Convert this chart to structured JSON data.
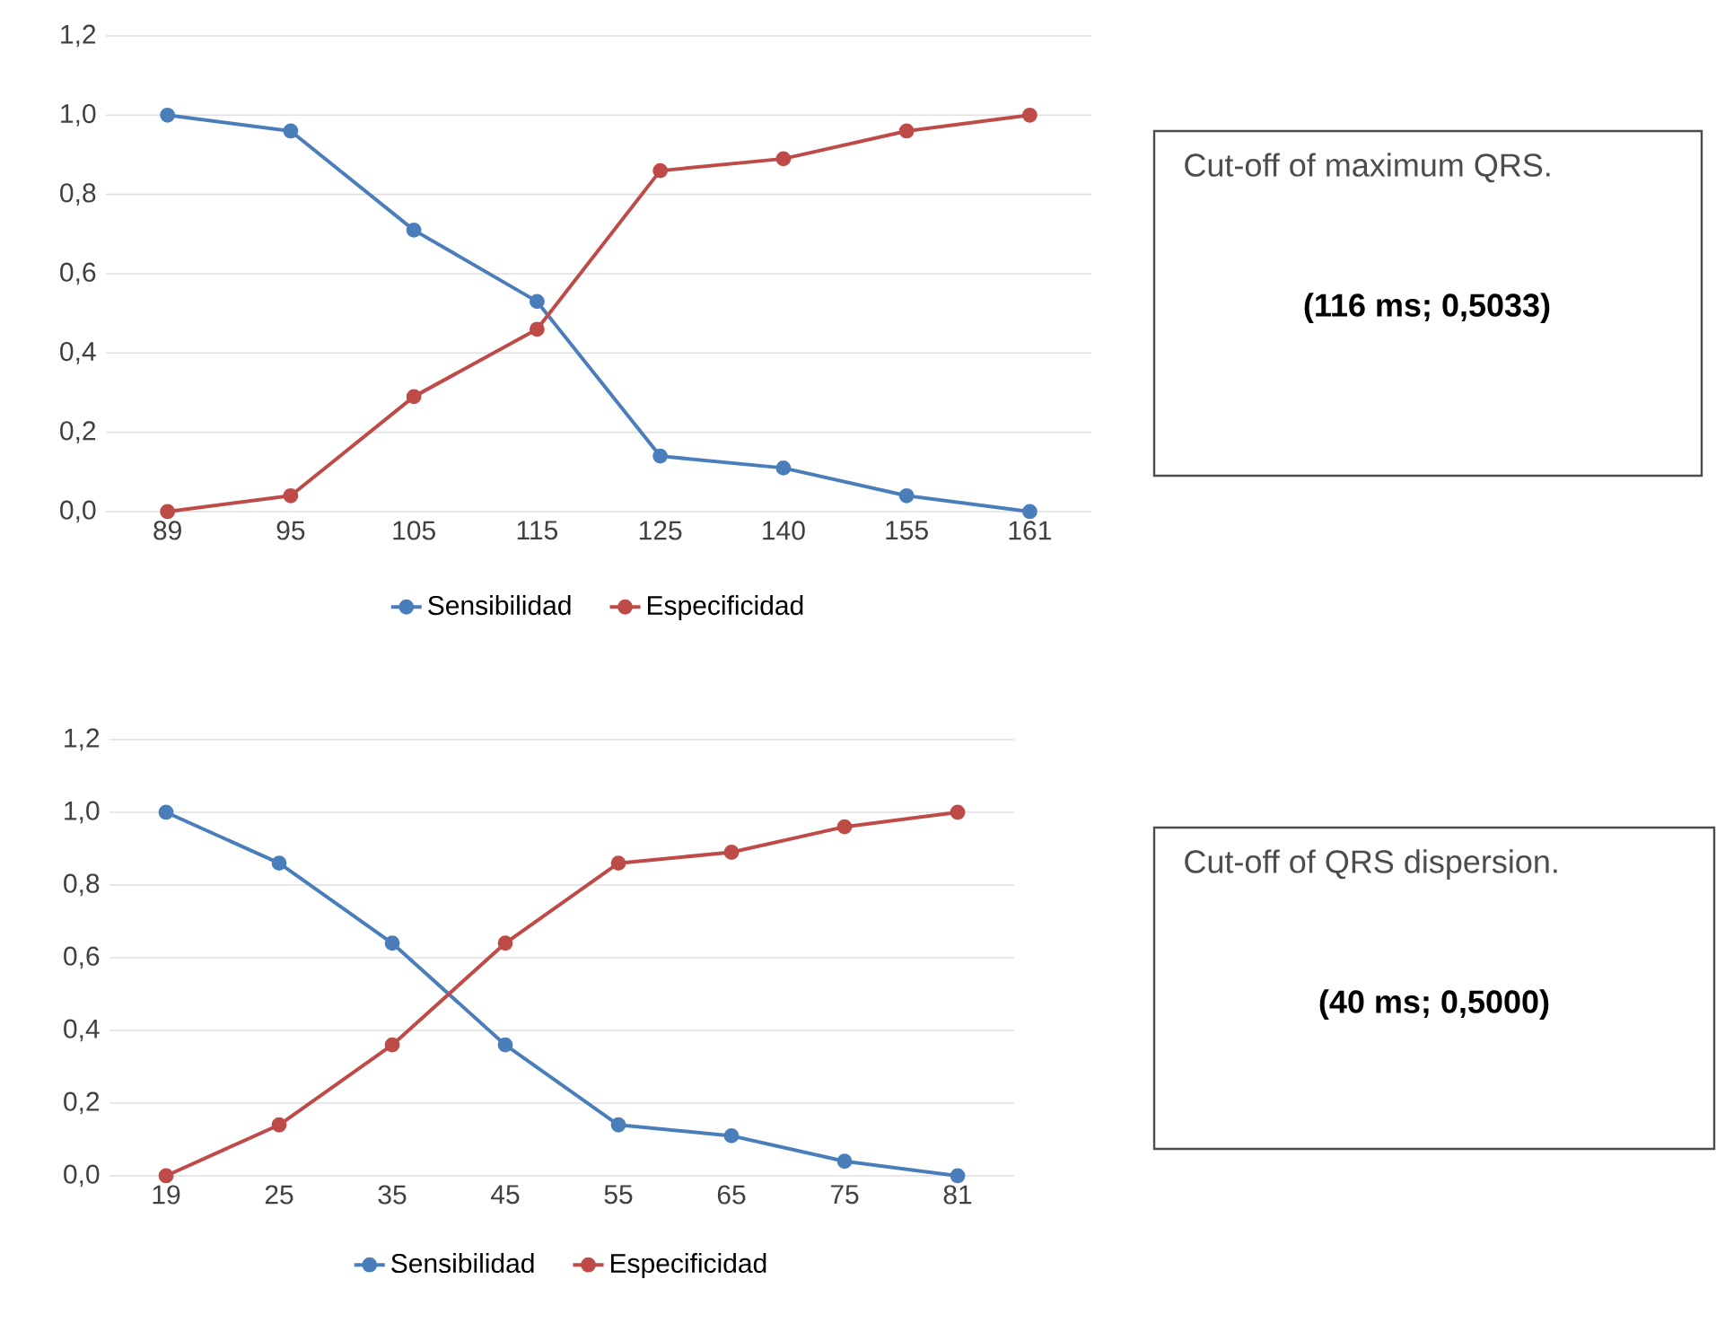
{
  "chart_data": [
    {
      "type": "line",
      "categories": [
        "89",
        "95",
        "105",
        "115",
        "125",
        "140",
        "155",
        "161"
      ],
      "series": [
        {
          "name": "Sensibilidad",
          "color": "#4a7ebb",
          "values": [
            1.0,
            0.96,
            0.71,
            0.53,
            0.14,
            0.11,
            0.04,
            0.0
          ]
        },
        {
          "name": "Especificidad",
          "color": "#be4b48",
          "values": [
            0.0,
            0.04,
            0.29,
            0.46,
            0.86,
            0.89,
            0.96,
            1.0
          ]
        }
      ],
      "ylim": [
        0,
        1.2
      ],
      "yticks": [
        {
          "value": 0,
          "label": "0,0"
        },
        {
          "value": 0.2,
          "label": "0,2"
        },
        {
          "value": 0.4,
          "label": "0,4"
        },
        {
          "value": 0.6,
          "label": "0,6"
        },
        {
          "value": 0.8,
          "label": "0,8"
        },
        {
          "value": 1.0,
          "label": "1,0"
        },
        {
          "value": 1.2,
          "label": "1,2"
        }
      ],
      "grid": "y",
      "legend": "bottom",
      "marker": "circle"
    },
    {
      "type": "other",
      "title": "Cut-off of maximum QRS.",
      "annotations": [
        "(116 ms; 0,5033)"
      ]
    },
    {
      "type": "line",
      "categories": [
        "19",
        "25",
        "35",
        "45",
        "55",
        "65",
        "75",
        "81"
      ],
      "series": [
        {
          "name": "Sensibilidad",
          "color": "#4a7ebb",
          "values": [
            1.0,
            0.86,
            0.64,
            0.36,
            0.14,
            0.11,
            0.04,
            0.0
          ]
        },
        {
          "name": "Especificidad",
          "color": "#be4b48",
          "values": [
            0.0,
            0.14,
            0.36,
            0.64,
            0.86,
            0.89,
            0.96,
            1.0
          ]
        }
      ],
      "ylim": [
        0,
        1.2
      ],
      "yticks": [
        {
          "value": 0,
          "label": "0,0"
        },
        {
          "value": 0.2,
          "label": "0,2"
        },
        {
          "value": 0.4,
          "label": "0,4"
        },
        {
          "value": 0.6,
          "label": "0,6"
        },
        {
          "value": 0.8,
          "label": "0,8"
        },
        {
          "value": 1.0,
          "label": "1,0"
        },
        {
          "value": 1.2,
          "label": "1,2"
        }
      ],
      "grid": "y",
      "legend": "bottom",
      "marker": "circle"
    },
    {
      "type": "other",
      "title": "Cut-off of QRS dispersion.",
      "annotations": [
        "(40 ms; 0,5000)"
      ]
    }
  ]
}
